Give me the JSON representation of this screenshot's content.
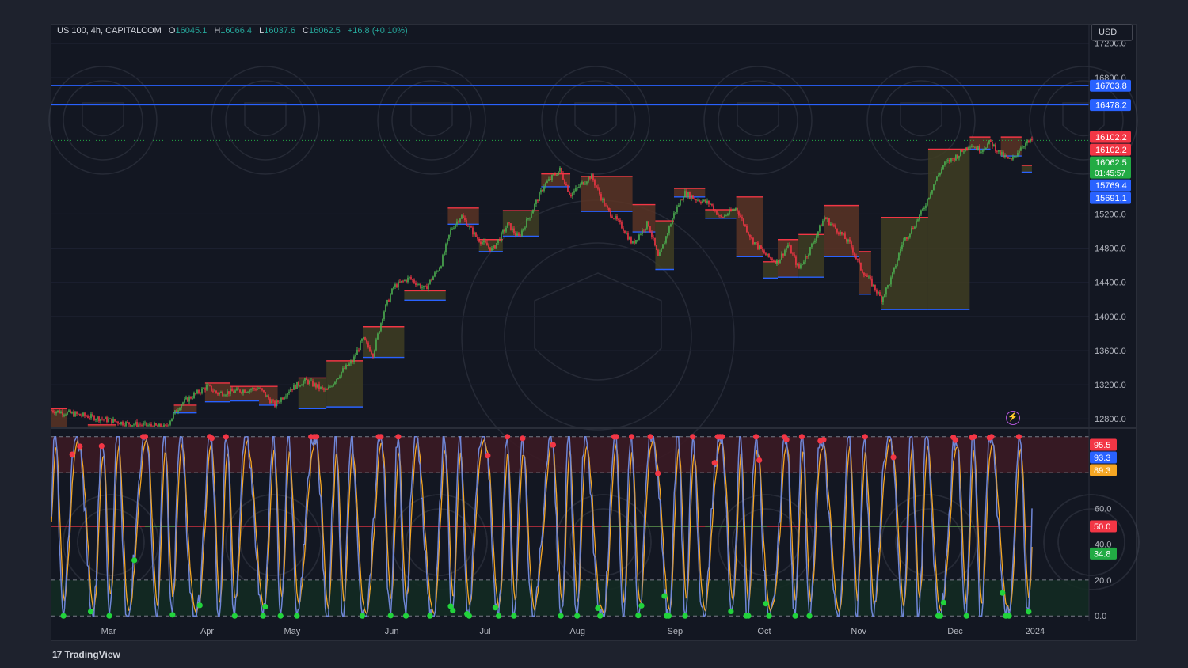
{
  "legend": {
    "symbol": "US 100, 4h, CAPITALCOM",
    "o_label": "O",
    "o": "16045.1",
    "h_label": "H",
    "h": "16066.4",
    "l_label": "L",
    "l": "16037.6",
    "c_label": "C",
    "c": "16062.5",
    "change": "+16.8 (+0.10%)"
  },
  "currency": "USD",
  "brand": {
    "logo": "17",
    "name": "TradingView"
  },
  "countdown": "01:45:57",
  "icons": {
    "alert": "lightning-icon"
  },
  "colors": {
    "up": "#26a69a",
    "down": "#ef5350",
    "candle_up": "#4caf50",
    "candle_down": "#f23645",
    "blue_line": "#2962ff",
    "stoch_k": "#5b7bd5",
    "stoch_d": "#f5a623",
    "overbought_zone": "#3b1a24",
    "oversold_zone": "#132a22"
  },
  "chart_data": [
    {
      "type": "line",
      "name_role": "price",
      "ylim": [
        12700,
        17420
      ],
      "y_ticks": [
        "17200.0",
        "16800.0",
        "15200.0",
        "14800.0",
        "14400.0",
        "14000.0",
        "13600.0",
        "13200.0",
        "12800.0"
      ],
      "y_tick_values": [
        17200,
        16800,
        15200,
        14800,
        14400,
        14000,
        13600,
        13200,
        12800
      ],
      "x_ticks": [
        "Mar",
        "Apr",
        "May",
        "Jun",
        "Jul",
        "Aug",
        "Sep",
        "Oct",
        "Nov",
        "Dec",
        "2024"
      ],
      "x_tick_pos": [
        0.055,
        0.15,
        0.232,
        0.328,
        0.418,
        0.507,
        0.601,
        0.687,
        0.778,
        0.871,
        0.948
      ],
      "x_range": [
        0,
        1
      ],
      "price_path": [
        [
          0.0,
          12900
        ],
        [
          0.04,
          12820
        ],
        [
          0.07,
          12750
        ],
        [
          0.11,
          12700
        ],
        [
          0.115,
          12800
        ],
        [
          0.125,
          12980
        ],
        [
          0.15,
          13180
        ],
        [
          0.16,
          13100
        ],
        [
          0.175,
          13120
        ],
        [
          0.2,
          13160
        ],
        [
          0.215,
          12960
        ],
        [
          0.23,
          13150
        ],
        [
          0.245,
          13250
        ],
        [
          0.265,
          13120
        ],
        [
          0.28,
          13360
        ],
        [
          0.29,
          13470
        ],
        [
          0.3,
          13740
        ],
        [
          0.31,
          13560
        ],
        [
          0.32,
          14050
        ],
        [
          0.33,
          14350
        ],
        [
          0.345,
          14450
        ],
        [
          0.36,
          14320
        ],
        [
          0.375,
          14600
        ],
        [
          0.385,
          15020
        ],
        [
          0.395,
          15180
        ],
        [
          0.41,
          14920
        ],
        [
          0.425,
          14780
        ],
        [
          0.44,
          15080
        ],
        [
          0.45,
          14920
        ],
        [
          0.46,
          15160
        ],
        [
          0.475,
          15540
        ],
        [
          0.49,
          15720
        ],
        [
          0.5,
          15420
        ],
        [
          0.51,
          15540
        ],
        [
          0.52,
          15650
        ],
        [
          0.535,
          15260
        ],
        [
          0.55,
          15050
        ],
        [
          0.56,
          14850
        ],
        [
          0.575,
          15100
        ],
        [
          0.585,
          14680
        ],
        [
          0.6,
          15200
        ],
        [
          0.61,
          15450
        ],
        [
          0.62,
          15380
        ],
        [
          0.635,
          15320
        ],
        [
          0.645,
          15150
        ],
        [
          0.66,
          15270
        ],
        [
          0.675,
          14900
        ],
        [
          0.69,
          14700
        ],
        [
          0.7,
          14640
        ],
        [
          0.71,
          14840
        ],
        [
          0.72,
          14560
        ],
        [
          0.73,
          14760
        ],
        [
          0.745,
          15160
        ],
        [
          0.76,
          14980
        ],
        [
          0.77,
          14840
        ],
        [
          0.78,
          14560
        ],
        [
          0.79,
          14400
        ],
        [
          0.8,
          14200
        ],
        [
          0.81,
          14460
        ],
        [
          0.82,
          14860
        ],
        [
          0.83,
          15040
        ],
        [
          0.84,
          15250
        ],
        [
          0.85,
          15540
        ],
        [
          0.86,
          15780
        ],
        [
          0.875,
          15900
        ],
        [
          0.885,
          16020
        ],
        [
          0.895,
          15950
        ],
        [
          0.905,
          16040
        ],
        [
          0.915,
          15900
        ],
        [
          0.925,
          15820
        ],
        [
          0.935,
          16000
        ],
        [
          0.945,
          16062.5
        ]
      ],
      "current_price": 16062.5,
      "horizontal_lines": [
        16703.8,
        16478.2
      ],
      "price_labels": [
        {
          "text": "16703.8",
          "value": 16703.8,
          "color": "#2962ff"
        },
        {
          "text": "16478.2",
          "value": 16478.2,
          "color": "#2962ff"
        },
        {
          "text": "16102.2",
          "value": 16102.2,
          "color": "#f23645"
        },
        {
          "text": "16102.2",
          "value": 16102.2,
          "color": "#f23645"
        },
        {
          "text": "16062.5",
          "value": 16062.5,
          "color": "#22ab44"
        },
        {
          "text": "15769.4",
          "value": 15769.4,
          "color": "#2962ff"
        },
        {
          "text": "15691.1",
          "value": 15691.1,
          "color": "#2962ff"
        }
      ],
      "zones": [
        {
          "x0": 0.0,
          "x1": 0.015,
          "top": 12920,
          "bottom": 12700,
          "type": "supply"
        },
        {
          "x0": 0.035,
          "x1": 0.062,
          "top": 12730,
          "bottom": 12700,
          "type": "supply"
        },
        {
          "x0": 0.118,
          "x1": 0.14,
          "top": 12960,
          "bottom": 12870,
          "type": "supply"
        },
        {
          "x0": 0.148,
          "x1": 0.172,
          "top": 13220,
          "bottom": 13000,
          "type": "supply"
        },
        {
          "x0": 0.172,
          "x1": 0.2,
          "top": 13180,
          "bottom": 13010,
          "type": "supply"
        },
        {
          "x0": 0.2,
          "x1": 0.218,
          "top": 13180,
          "bottom": 12960,
          "type": "supply"
        },
        {
          "x0": 0.238,
          "x1": 0.265,
          "top": 13280,
          "bottom": 12920,
          "type": "demand"
        },
        {
          "x0": 0.265,
          "x1": 0.3,
          "top": 13480,
          "bottom": 12940,
          "type": "demand"
        },
        {
          "x0": 0.3,
          "x1": 0.34,
          "top": 13880,
          "bottom": 13520,
          "type": "demand"
        },
        {
          "x0": 0.34,
          "x1": 0.38,
          "top": 14300,
          "bottom": 14190,
          "type": "demand"
        },
        {
          "x0": 0.382,
          "x1": 0.412,
          "top": 15270,
          "bottom": 15080,
          "type": "supply"
        },
        {
          "x0": 0.412,
          "x1": 0.435,
          "top": 14900,
          "bottom": 14760,
          "type": "demand"
        },
        {
          "x0": 0.435,
          "x1": 0.47,
          "top": 15240,
          "bottom": 14940,
          "type": "demand"
        },
        {
          "x0": 0.472,
          "x1": 0.5,
          "top": 15670,
          "bottom": 15520,
          "type": "supply"
        },
        {
          "x0": 0.51,
          "x1": 0.56,
          "top": 15640,
          "bottom": 15230,
          "type": "supply"
        },
        {
          "x0": 0.56,
          "x1": 0.582,
          "top": 15310,
          "bottom": 14990,
          "type": "supply"
        },
        {
          "x0": 0.582,
          "x1": 0.6,
          "top": 15120,
          "bottom": 14550,
          "type": "demand"
        },
        {
          "x0": 0.6,
          "x1": 0.63,
          "top": 15500,
          "bottom": 15400,
          "type": "supply"
        },
        {
          "x0": 0.63,
          "x1": 0.66,
          "top": 15250,
          "bottom": 15150,
          "type": "demand"
        },
        {
          "x0": 0.66,
          "x1": 0.686,
          "top": 15400,
          "bottom": 14700,
          "type": "supply"
        },
        {
          "x0": 0.686,
          "x1": 0.7,
          "top": 14640,
          "bottom": 14450,
          "type": "demand"
        },
        {
          "x0": 0.7,
          "x1": 0.72,
          "top": 14900,
          "bottom": 14460,
          "type": "supply"
        },
        {
          "x0": 0.72,
          "x1": 0.745,
          "top": 14960,
          "bottom": 14460,
          "type": "demand"
        },
        {
          "x0": 0.745,
          "x1": 0.778,
          "top": 15300,
          "bottom": 14700,
          "type": "supply"
        },
        {
          "x0": 0.778,
          "x1": 0.79,
          "top": 14760,
          "bottom": 14260,
          "type": "supply"
        },
        {
          "x0": 0.8,
          "x1": 0.845,
          "top": 15160,
          "bottom": 14080,
          "type": "demand"
        },
        {
          "x0": 0.845,
          "x1": 0.885,
          "top": 15960,
          "bottom": 14080,
          "type": "demand"
        },
        {
          "x0": 0.885,
          "x1": 0.905,
          "top": 16102,
          "bottom": 15960,
          "type": "supply"
        },
        {
          "x0": 0.915,
          "x1": 0.935,
          "top": 16102,
          "bottom": 15880,
          "type": "supply"
        },
        {
          "x0": 0.935,
          "x1": 0.945,
          "top": 15769,
          "bottom": 15691,
          "type": "demand"
        }
      ]
    },
    {
      "type": "line",
      "name_role": "stochastic",
      "ylim": [
        -3,
        103
      ],
      "y_ticks": [
        "80.0",
        "60.0",
        "40.0",
        "20.0",
        "0.0"
      ],
      "y_tick_values": [
        80,
        60,
        40,
        20,
        0
      ],
      "levels": {
        "overbought_top": 100,
        "overbought": 80,
        "middle": 50,
        "oversold": 20,
        "oversold_bottom": 0
      },
      "value_labels": [
        {
          "text": "95.5",
          "value": 95.5,
          "color": "#f23645"
        },
        {
          "text": "93.3",
          "value": 93.3,
          "color": "#2962ff"
        },
        {
          "text": "89.3",
          "value": 89.3,
          "color": "#f5a623"
        },
        {
          "text": "50.0",
          "value": 50.0,
          "color": "#f23645"
        },
        {
          "text": "34.8",
          "value": 34.8,
          "color": "#22ab44"
        }
      ],
      "oscillations": 92,
      "current_k": 93.3,
      "current_d": 89.3
    }
  ]
}
